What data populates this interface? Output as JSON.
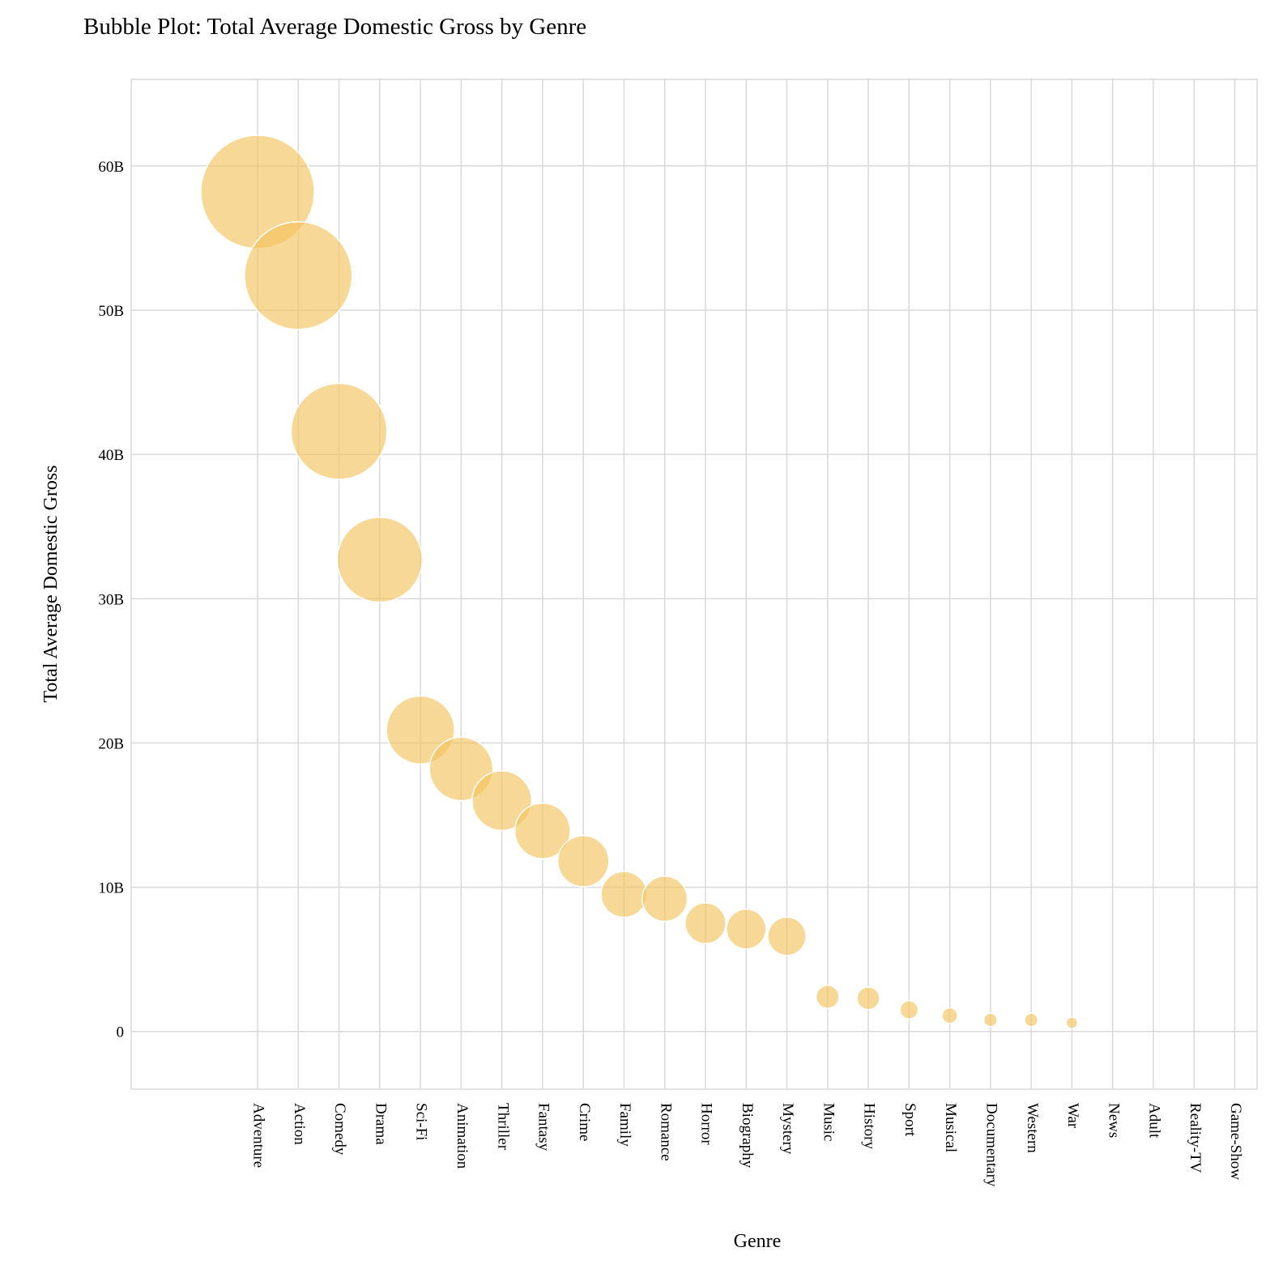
{
  "chart_data": {
    "type": "scatter",
    "title": "Bubble Plot: Total Average Domestic Gross by Genre",
    "xlabel": "Genre",
    "ylabel": "Total Average Domestic Gross",
    "ylim": [
      -4,
      66
    ],
    "yticks": [
      0,
      10,
      20,
      30,
      40,
      50,
      60
    ],
    "ytick_labels": [
      "0",
      "10B",
      "20B",
      "30B",
      "40B",
      "50B",
      "60B"
    ],
    "categories": [
      "Adventure",
      "Action",
      "Comedy",
      "Drama",
      "Sci-Fi",
      "Animation",
      "Thriller",
      "Fantasy",
      "Crime",
      "Family",
      "Romance",
      "Horror",
      "Biography",
      "Mystery",
      "Music",
      "History",
      "Sport",
      "Musical",
      "Documentary",
      "Western",
      "War",
      "News",
      "Adult",
      "Reality-TV",
      "Game-Show"
    ],
    "values": [
      58.2,
      52.4,
      41.6,
      32.7,
      20.9,
      18.2,
      16.0,
      13.9,
      11.8,
      9.5,
      9.2,
      7.5,
      7.1,
      6.6,
      2.4,
      2.3,
      1.5,
      1.1,
      0.8,
      0.8,
      0.6,
      0,
      0,
      0,
      0
    ],
    "bubble_color": "#f5c35e",
    "grid": true,
    "legend": "none"
  }
}
